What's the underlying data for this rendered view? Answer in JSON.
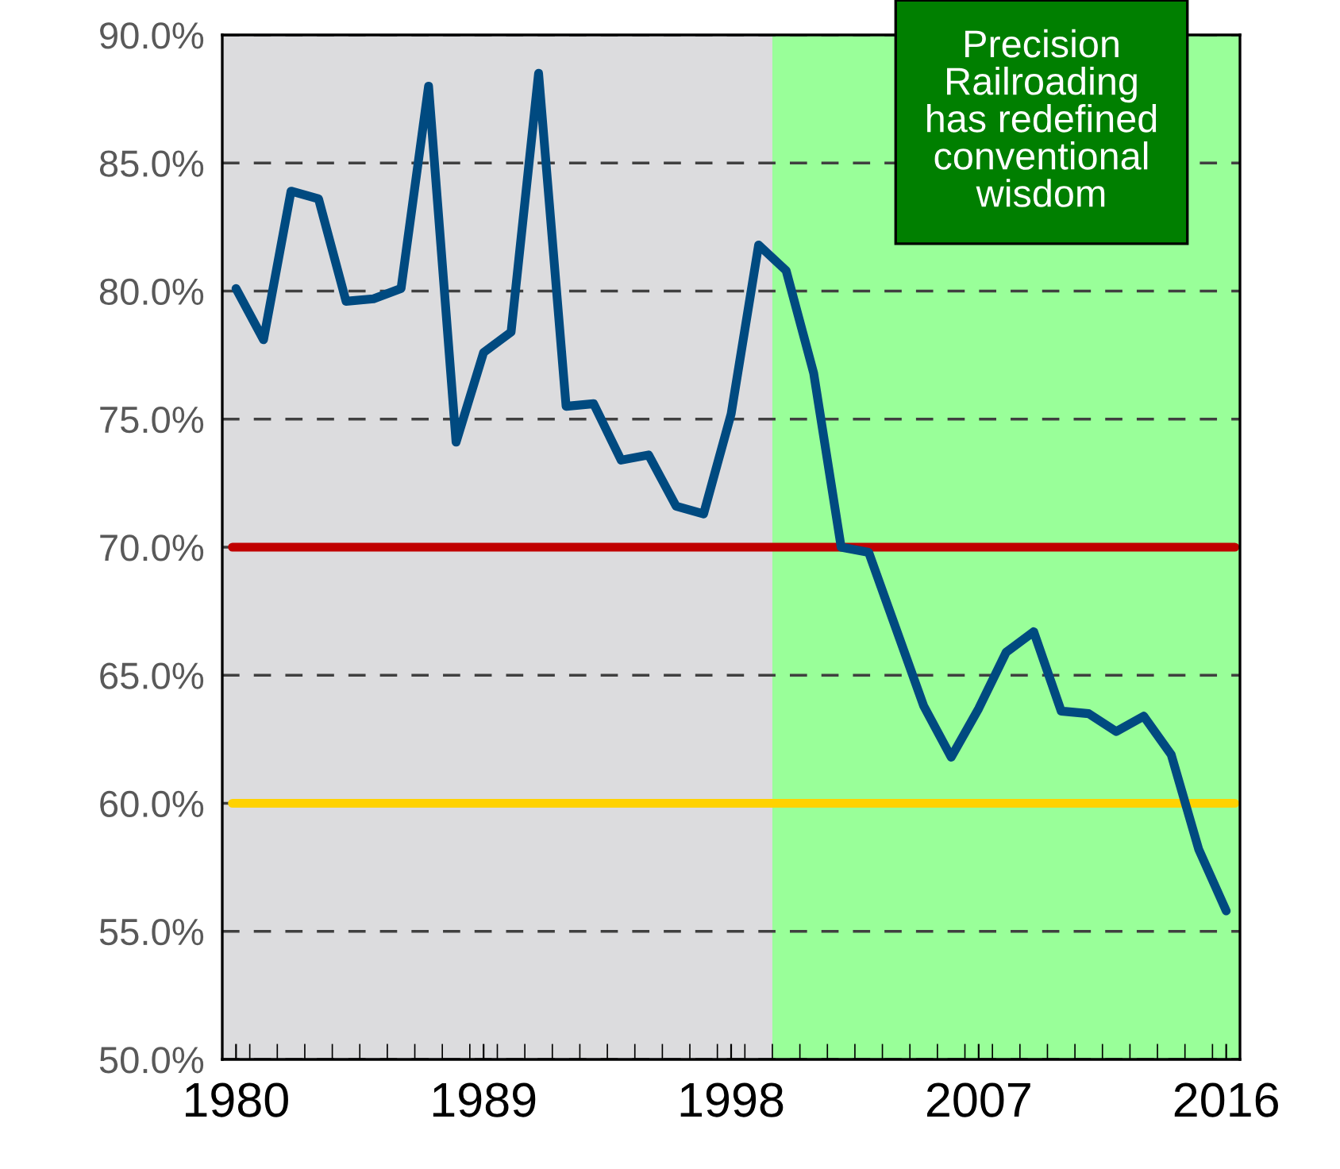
{
  "chart_data": {
    "type": "line",
    "x": [
      1980,
      1981,
      1982,
      1983,
      1984,
      1985,
      1986,
      1987,
      1988,
      1989,
      1990,
      1991,
      1992,
      1993,
      1994,
      1995,
      1996,
      1997,
      1998,
      1999,
      2000,
      2001,
      2002,
      2003,
      2004,
      2005,
      2006,
      2007,
      2008,
      2009,
      2010,
      2011,
      2012,
      2013,
      2014,
      2015,
      2016
    ],
    "series": [
      {
        "color": "#004a80",
        "values": [
          80.1,
          78.1,
          83.9,
          83.6,
          79.6,
          79.7,
          80.1,
          88.0,
          74.1,
          77.6,
          78.4,
          88.5,
          75.5,
          75.6,
          73.4,
          73.6,
          71.6,
          71.3,
          75.2,
          81.8,
          80.8,
          76.8,
          70.0,
          69.8,
          66.8,
          63.8,
          61.8,
          63.7,
          65.9,
          66.7,
          63.6,
          63.5,
          62.8,
          63.4,
          61.9,
          58.2,
          55.8
        ]
      }
    ],
    "xlim": [
      1979.5,
      2016.5
    ],
    "xticks": [
      {
        "value": 1980,
        "label": "1980"
      },
      {
        "value": 1989,
        "label": "1989"
      },
      {
        "value": 1998,
        "label": "1998"
      },
      {
        "value": 2007,
        "label": "2007"
      },
      {
        "value": 2016,
        "label": "2016"
      }
    ],
    "ylim": [
      50,
      90
    ],
    "yticks": [
      {
        "value": 50,
        "label": "50.0%"
      },
      {
        "value": 55,
        "label": "55.0%"
      },
      {
        "value": 60,
        "label": "60.0%"
      },
      {
        "value": 65,
        "label": "65.0%"
      },
      {
        "value": 70,
        "label": "70.0%"
      },
      {
        "value": 75,
        "label": "75.0%"
      },
      {
        "value": 80,
        "label": "80.0%"
      },
      {
        "value": 85,
        "label": "85.0%"
      },
      {
        "value": 90,
        "label": "90.0%"
      }
    ],
    "grid": "y",
    "line_style": "solid",
    "bands": [
      {
        "axis": "x",
        "from": 1979.5,
        "to": 1999.5,
        "color": "#dcdcde"
      },
      {
        "axis": "x",
        "from": 1999.5,
        "to": 2016.5,
        "color": "#99ff99"
      }
    ],
    "ref_lines": [
      {
        "axis": "y",
        "value": 70,
        "color": "#c00000",
        "line_style": "solid"
      },
      {
        "axis": "y",
        "value": 60,
        "color": "#ffd200",
        "line_style": "solid"
      }
    ],
    "annotations": [
      "Precision\nRailroading\nhas redefined\nconventional\nwisdom"
    ]
  }
}
